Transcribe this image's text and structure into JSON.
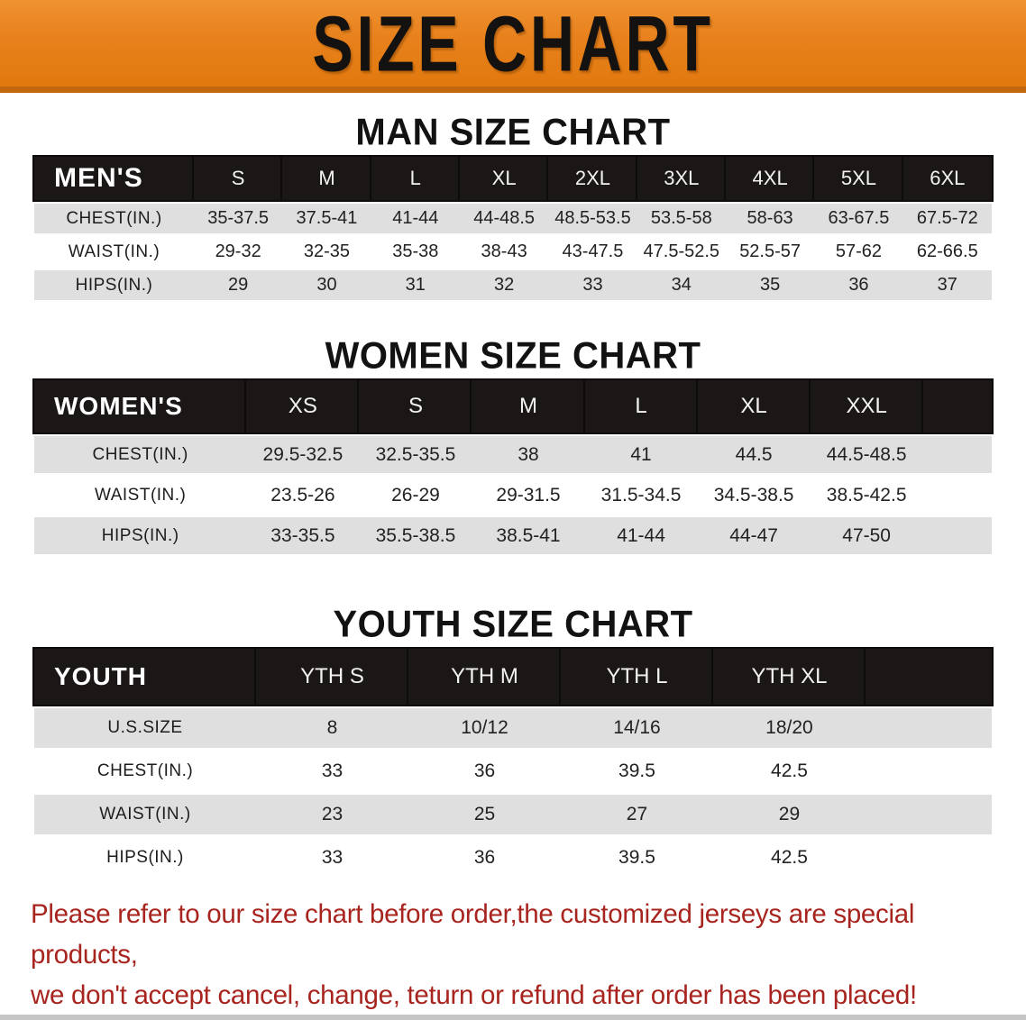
{
  "banner": {
    "title": "SIZE CHART"
  },
  "sections": [
    {
      "heading": "MAN SIZE CHART",
      "corner_label": "MEN'S",
      "sizes": [
        "S",
        "M",
        "L",
        "XL",
        "2XL",
        "3XL",
        "4XL",
        "5XL",
        "6XL"
      ],
      "rows": [
        {
          "label": "CHEST(IN.)",
          "values": [
            "35-37.5",
            "37.5-41",
            "41-44",
            "44-48.5",
            "48.5-53.5",
            "53.5-58",
            "58-63",
            "63-67.5",
            "67.5-72"
          ]
        },
        {
          "label": "WAIST(IN.)",
          "values": [
            "29-32",
            "32-35",
            "35-38",
            "38-43",
            "43-47.5",
            "47.5-52.5",
            "52.5-57",
            "57-62",
            "62-66.5"
          ]
        },
        {
          "label": "HIPS(IN.)",
          "values": [
            "29",
            "30",
            "31",
            "32",
            "33",
            "34",
            "35",
            "36",
            "37"
          ]
        }
      ]
    },
    {
      "heading": "WOMEN SIZE CHART",
      "corner_label": "WOMEN'S",
      "sizes": [
        "XS",
        "S",
        "M",
        "L",
        "XL",
        "XXL"
      ],
      "rows": [
        {
          "label": "CHEST(IN.)",
          "values": [
            "29.5-32.5",
            "32.5-35.5",
            "38",
            "41",
            "44.5",
            "44.5-48.5"
          ]
        },
        {
          "label": "WAIST(IN.)",
          "values": [
            "23.5-26",
            "26-29",
            "29-31.5",
            "31.5-34.5",
            "34.5-38.5",
            "38.5-42.5"
          ]
        },
        {
          "label": "HIPS(IN.)",
          "values": [
            "33-35.5",
            "35.5-38.5",
            "38.5-41",
            "41-44",
            "44-47",
            "47-50"
          ]
        }
      ]
    },
    {
      "heading": "YOUTH SIZE CHART",
      "corner_label": "YOUTH",
      "sizes": [
        "YTH S",
        "YTH M",
        "YTH L",
        "YTH XL"
      ],
      "rows": [
        {
          "label": "U.S.SIZE",
          "values": [
            "8",
            "10/12",
            "14/16",
            "18/20"
          ]
        },
        {
          "label": "CHEST(IN.)",
          "values": [
            "33",
            "36",
            "39.5",
            "42.5"
          ]
        },
        {
          "label": "WAIST(IN.)",
          "values": [
            "23",
            "25",
            "27",
            "29"
          ]
        },
        {
          "label": "HIPS(IN.)",
          "values": [
            "33",
            "36",
            "39.5",
            "42.5"
          ]
        }
      ]
    }
  ],
  "disclaimer": {
    "line1": "Please refer to our size chart before order,the customized jerseys are special products,",
    "line2": "we don't accept cancel, change, teturn or refund after order has been placed!"
  },
  "colors": {
    "banner_orange": "#E8811C",
    "banner_edge": "#C2670D",
    "table_header_bg": "#1A1716",
    "row_stripe": "#DFDFDF",
    "disclaimer_red": "#A8241E",
    "bottom_bar": "#C5C5C5"
  }
}
